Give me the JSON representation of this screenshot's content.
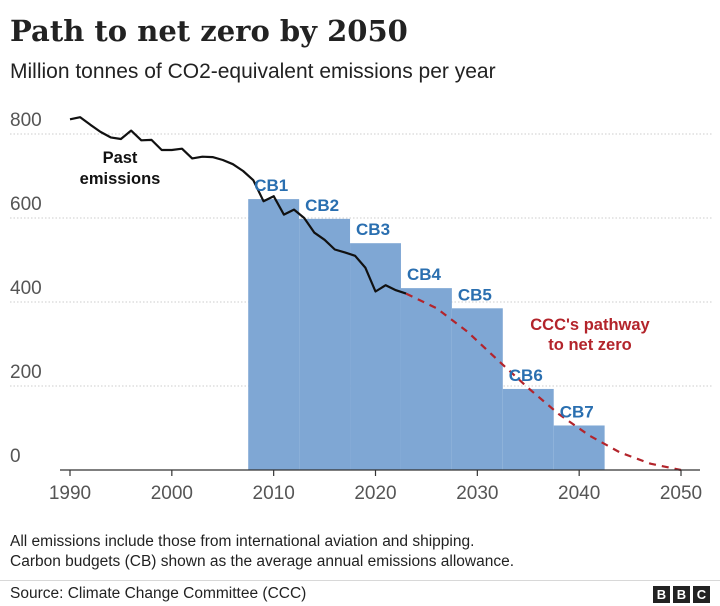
{
  "title": "Path to net zero by 2050",
  "subtitle": "Million tonnes of CO2-equivalent emissions per year",
  "notes": [
    "All emissions include those from international aviation and shipping.",
    "Carbon budgets (CB) shown as the average annual emissions allowance."
  ],
  "source": "Source: Climate Change Committee (CCC)",
  "logo": [
    "B",
    "B",
    "C"
  ],
  "colors": {
    "budget_fill": "#7fa7d4",
    "budget_label": "#2a6fb0",
    "past_line": "#111111",
    "pathway_line": "#b3242b",
    "grid": "#cccccc",
    "axis_text": "#555555"
  },
  "chart_data": {
    "type": "line",
    "title": "Path to net zero by 2050",
    "subtitle": "Million tonnes of CO2-equivalent emissions per year",
    "xlim": [
      1990,
      2050
    ],
    "ylim": [
      0,
      840
    ],
    "x_ticks": [
      1990,
      2000,
      2010,
      2020,
      2030,
      2040,
      2050
    ],
    "y_ticks": [
      0,
      200,
      400,
      600,
      800
    ],
    "grid": true,
    "carbon_budgets": [
      {
        "label": "CB1",
        "start": 2008,
        "end": 2012,
        "value": 645
      },
      {
        "label": "CB2",
        "start": 2013,
        "end": 2017,
        "value": 598
      },
      {
        "label": "CB3",
        "start": 2018,
        "end": 2022,
        "value": 540
      },
      {
        "label": "CB4",
        "start": 2023,
        "end": 2027,
        "value": 433
      },
      {
        "label": "CB5",
        "start": 2028,
        "end": 2032,
        "value": 385
      },
      {
        "label": "CB6",
        "start": 2033,
        "end": 2037,
        "value": 193
      },
      {
        "label": "CB7",
        "start": 2038,
        "end": 2042,
        "value": 106
      }
    ],
    "series": [
      {
        "name": "Past emissions",
        "style": "solid",
        "x": [
          1990,
          1991,
          1992,
          1993,
          1994,
          1995,
          1996,
          1997,
          1998,
          1999,
          2000,
          2001,
          2002,
          2003,
          2004,
          2005,
          2006,
          2007,
          2008,
          2009,
          2010,
          2011,
          2012,
          2013,
          2014,
          2015,
          2016,
          2017,
          2018,
          2019,
          2020,
          2021,
          2022,
          2023
        ],
        "y": [
          835,
          840,
          822,
          805,
          792,
          788,
          808,
          785,
          786,
          762,
          762,
          765,
          742,
          746,
          745,
          738,
          728,
          712,
          690,
          640,
          652,
          608,
          620,
          600,
          565,
          548,
          525,
          518,
          510,
          482,
          425,
          440,
          428,
          420
        ]
      },
      {
        "name": "CCC's pathway to net zero",
        "style": "dashed",
        "x": [
          2023,
          2026,
          2029,
          2032,
          2035,
          2038,
          2041,
          2044,
          2047,
          2050
        ],
        "y": [
          420,
          385,
          330,
          262,
          195,
          133,
          82,
          42,
          15,
          0
        ]
      }
    ],
    "annotations": [
      {
        "text": "Past",
        "near": "past-emissions"
      },
      {
        "text": "emissions",
        "near": "past-emissions"
      },
      {
        "text": "CCC's pathway",
        "near": "pathway"
      },
      {
        "text": "to net zero",
        "near": "pathway"
      }
    ]
  }
}
